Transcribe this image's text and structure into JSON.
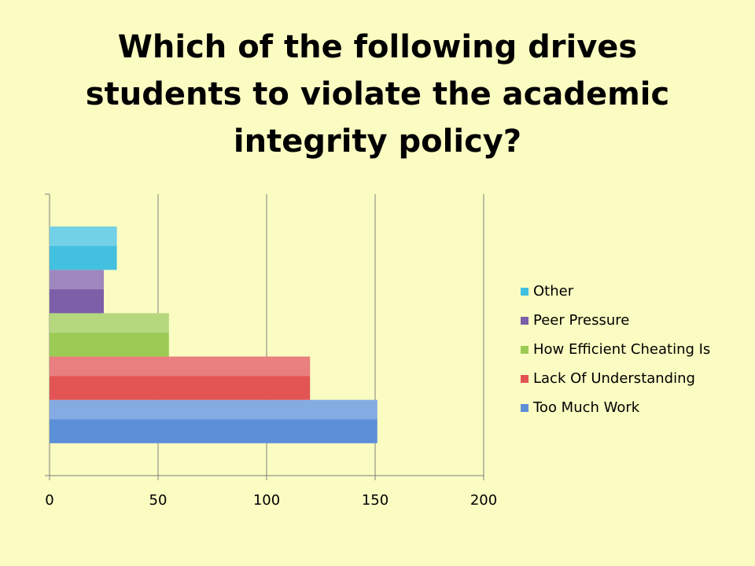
{
  "chart_data": {
    "type": "bar",
    "orientation": "horizontal",
    "title": "Which of the following drives students to violate the academic integrity policy?",
    "categories": [
      null
    ],
    "series": [
      {
        "name": "Too Much Work",
        "color": "#5b8fd8",
        "values": [
          151
        ]
      },
      {
        "name": "Lack Of Understanding",
        "color": "#e35454",
        "values": [
          120
        ]
      },
      {
        "name": "How Efficient Cheating Is",
        "color": "#9ccb55",
        "values": [
          55
        ]
      },
      {
        "name": "Peer Pressure",
        "color": "#7c5fa8",
        "values": [
          25
        ]
      },
      {
        "name": "Other",
        "color": "#43c0df",
        "values": [
          31
        ]
      }
    ],
    "xlim": [
      0,
      200
    ],
    "xticks": [
      0,
      50,
      100,
      150,
      200
    ],
    "grid": true,
    "legend": "right"
  }
}
